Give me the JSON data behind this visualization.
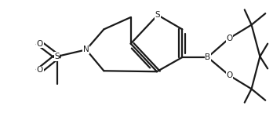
{
  "background_color": "#ffffff",
  "line_color": "#1a1a1a",
  "line_width": 1.6,
  "figsize": [
    3.48,
    1.44
  ],
  "dpi": 100,
  "xlim": [
    0.0,
    1.0
  ],
  "ylim": [
    0.0,
    1.0
  ]
}
